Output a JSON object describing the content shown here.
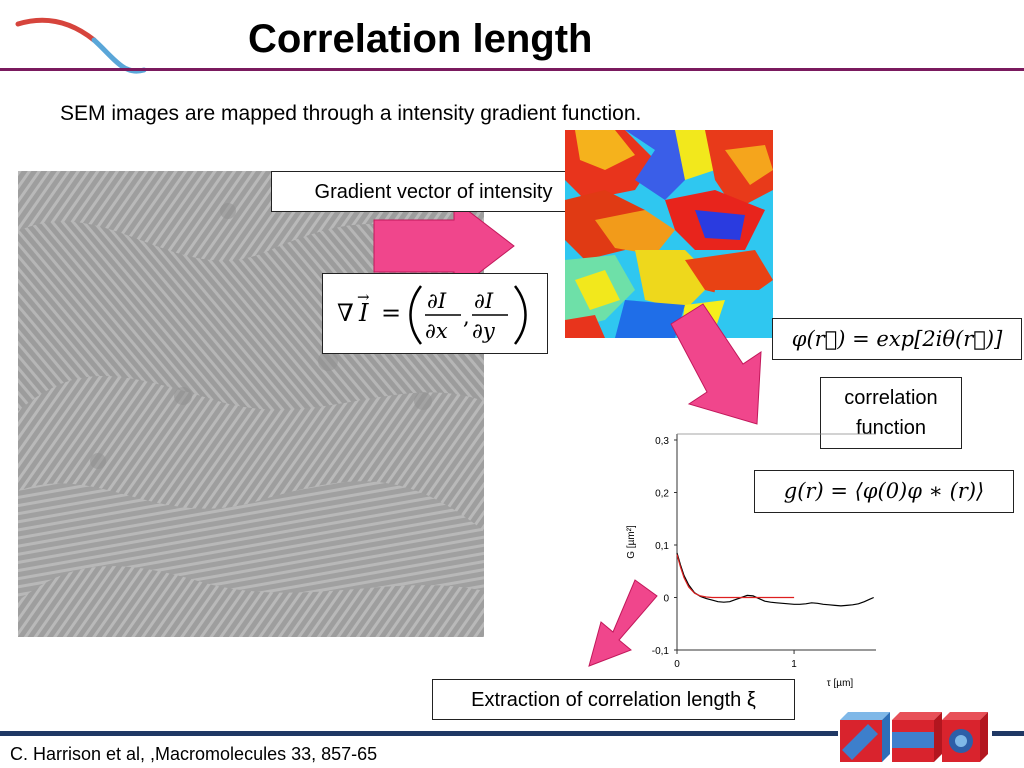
{
  "slide": {
    "title": "Correlation length",
    "subtitle": "SEM images are mapped through a intensity gradient function.",
    "citation": "C. Harrison et al, ,Macromolecules 33, 857-65"
  },
  "boxes": {
    "gradient_label": "Gradient vector of intensity",
    "correlation_label": "correlation function",
    "extraction_label": "Extraction of correlation length ξ"
  },
  "formulas": {
    "phi": "φ(r⃗) = exp[2iθ(r⃗)]",
    "g": "g(r) = ⟨φ(0)φ ∗ (r)⟩"
  },
  "colors": {
    "title_rule": "#7a1a5e",
    "bottom_rule": "#1f3864",
    "arrow": "#f0468c"
  },
  "icons": [
    "wave-logo-icon",
    "block-copolymer-cubes-icon"
  ],
  "chart_data": {
    "type": "line",
    "xlabel": "τ [µm]",
    "ylabel": "G [µm²]",
    "xticks": [
      "0",
      "1"
    ],
    "yticks": [
      "0,3",
      "0,2",
      "0,1",
      "0",
      "-0,1"
    ],
    "xlim": [
      0,
      1.7
    ],
    "ylim": [
      -0.1,
      0.3
    ],
    "series": [
      {
        "color": "#000000",
        "x": [
          0,
          0.03,
          0.06,
          0.1,
          0.15,
          0.2,
          0.25,
          0.3,
          0.35,
          0.4,
          0.45,
          0.5,
          0.55,
          0.6,
          0.65,
          0.7,
          0.75,
          0.8,
          0.85,
          0.9,
          0.95,
          1.0,
          1.05,
          1.1,
          1.15,
          1.2,
          1.25,
          1.3,
          1.35,
          1.4,
          1.45,
          1.5,
          1.55,
          1.6,
          1.65,
          1.68
        ],
        "y": [
          0.085,
          0.062,
          0.042,
          0.024,
          0.009,
          0.002,
          -0.002,
          -0.005,
          -0.008,
          -0.009,
          -0.008,
          -0.004,
          0.0,
          0.004,
          0.003,
          -0.002,
          -0.007,
          -0.009,
          -0.01,
          -0.011,
          -0.012,
          -0.013,
          -0.013,
          -0.012,
          -0.01,
          -0.011,
          -0.013,
          -0.014,
          -0.015,
          -0.016,
          -0.015,
          -0.014,
          -0.012,
          -0.008,
          -0.003,
          0.0
        ]
      },
      {
        "color": "#dd1f1f",
        "x": [
          0,
          0.03,
          0.06,
          0.1,
          0.15,
          0.2,
          0.25,
          0.3,
          0.4,
          0.5,
          0.6,
          0.7,
          0.8,
          0.9,
          1.0
        ],
        "y": [
          0.082,
          0.058,
          0.038,
          0.02,
          0.008,
          0.003,
          0.001,
          0.0,
          0.0,
          0.0,
          0.0,
          0.0,
          0.0,
          0.0,
          0.0
        ]
      }
    ]
  }
}
